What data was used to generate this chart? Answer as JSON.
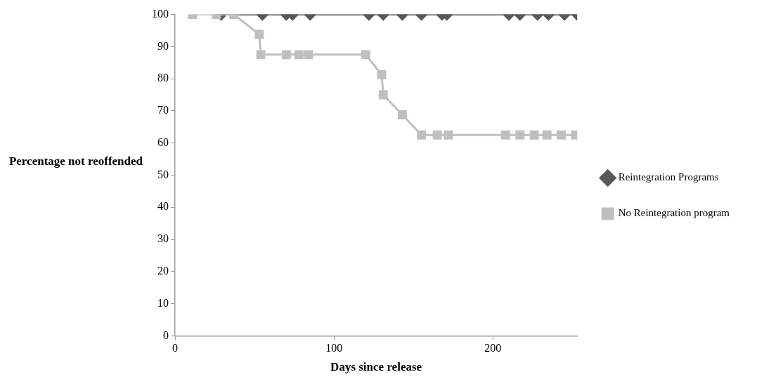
{
  "chart_data": {
    "type": "line",
    "xlabel": "Days since release",
    "ylabel": "Percentage not reoffended",
    "xlim": [
      0,
      253
    ],
    "xticks": [
      0,
      100,
      200
    ],
    "ylim": [
      0,
      100
    ],
    "yticks": [
      0,
      10,
      20,
      30,
      40,
      50,
      60,
      70,
      80,
      90,
      100
    ],
    "grid": false,
    "legend": "right",
    "series": [
      {
        "name": "Reintegration Programs",
        "color": "#595959",
        "marker": "diamond",
        "x": [
          29,
          38,
          55,
          70,
          74,
          85,
          122,
          131,
          143,
          155,
          168,
          171,
          210,
          217,
          228,
          235,
          245,
          253
        ],
        "values": [
          100,
          null,
          100,
          100,
          100,
          100,
          100,
          100,
          100,
          100,
          100,
          100,
          100,
          100,
          100,
          100,
          100,
          100
        ]
      },
      {
        "name": "No Reintegration program",
        "color": "#bfbfbf",
        "marker": "square",
        "x": [
          11,
          26,
          37,
          53,
          54,
          70,
          78,
          84,
          120,
          130,
          131,
          143,
          155,
          165,
          172,
          208,
          217,
          226,
          234,
          243,
          252
        ],
        "values": [
          100,
          100,
          100,
          93.8,
          87.5,
          87.5,
          87.5,
          87.5,
          87.5,
          81.3,
          75,
          68.8,
          62.5,
          62.5,
          62.5,
          62.5,
          62.5,
          62.5,
          62.5,
          62.5,
          62.5
        ]
      }
    ]
  }
}
